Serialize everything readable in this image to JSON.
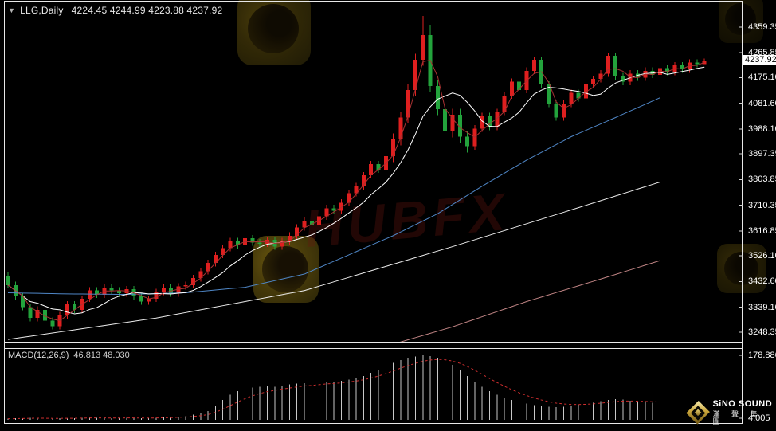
{
  "header": {
    "dropdown_icon": "▼",
    "symbol": "LLG,Daily",
    "values": "4224.45 4244.99 4223.88 4237.92"
  },
  "macd_header": {
    "label": "MACD(12,26,9)",
    "values": "46.813 48.030"
  },
  "price_axis": {
    "current": "4237.92"
  },
  "brand": {
    "name": "SiNO SOUND",
    "name_cn": "漢 聲 集 團"
  },
  "watermark": {
    "text": "HUBFX"
  },
  "chart_data": [
    {
      "type": "candlestick",
      "symbol": "LLG",
      "timeframe": "Daily",
      "last_ohlc": {
        "open": 4224.45,
        "high": 4244.99,
        "low": 4223.88,
        "close": 4237.92
      },
      "current_price": 4237.92,
      "ylim": [
        3213.6,
        4451.9
      ],
      "y_ticks": [
        "4359.35",
        "4265.85",
        "4175.10",
        "4081.60",
        "3988.10",
        "3897.35",
        "3803.85",
        "3710.35",
        "3616.85",
        "3526.10",
        "3432.60",
        "3339.10",
        "3248.35"
      ],
      "colors": {
        "bull": "#df1f1f",
        "bear": "#23a33c",
        "background": "#000000",
        "axis_text": "#ffffff",
        "border": "#e8e8e8"
      },
      "overlays": {
        "ma_fast": {
          "color": "#a83232",
          "period": 3,
          "type": "sma_of_close"
        },
        "ma_mid": {
          "color": "#ffffff",
          "period": 8,
          "type": "sma_of_close"
        },
        "ma_blue": {
          "color": "#4f86c6",
          "waypoints": [
            [
              0,
              3392
            ],
            [
              8,
              3388
            ],
            [
              16,
              3386
            ],
            [
              24,
              3392
            ],
            [
              32,
              3412
            ],
            [
              40,
              3460
            ],
            [
              46,
              3530
            ],
            [
              52,
              3600
            ],
            [
              58,
              3680
            ],
            [
              64,
              3780
            ],
            [
              70,
              3875
            ],
            [
              76,
              3960
            ],
            [
              82,
              4030
            ],
            [
              88,
              4102
            ]
          ]
        },
        "ma_long": {
          "color": "#ececec",
          "waypoints": [
            [
              0,
              3222
            ],
            [
              20,
              3300
            ],
            [
              40,
              3400
            ],
            [
              60,
              3560
            ],
            [
              75,
              3685
            ],
            [
              88,
              3795
            ]
          ]
        },
        "ma_slow": {
          "color": "#c08484",
          "waypoints": [
            [
              52,
              3205
            ],
            [
              60,
              3268
            ],
            [
              70,
              3360
            ],
            [
              80,
              3442
            ],
            [
              88,
              3509
            ]
          ]
        }
      },
      "ohlc": [
        [
          3455,
          3467,
          3408,
          3420
        ],
        [
          3420,
          3432,
          3368,
          3380
        ],
        [
          3380,
          3392,
          3328,
          3340
        ],
        [
          3340,
          3352,
          3288,
          3300
        ],
        [
          3300,
          3342,
          3288,
          3330
        ],
        [
          3330,
          3342,
          3278,
          3290
        ],
        [
          3290,
          3302,
          3258,
          3270
        ],
        [
          3270,
          3322,
          3258,
          3310
        ],
        [
          3310,
          3362,
          3298,
          3350
        ],
        [
          3350,
          3362,
          3318,
          3330
        ],
        [
          3330,
          3382,
          3318,
          3370
        ],
        [
          3370,
          3412,
          3358,
          3400
        ],
        [
          3400,
          3412,
          3373,
          3385
        ],
        [
          3385,
          3422,
          3373,
          3410
        ],
        [
          3410,
          3422,
          3388,
          3400
        ],
        [
          3400,
          3412,
          3378,
          3390
        ],
        [
          3390,
          3417,
          3378,
          3405
        ],
        [
          3405,
          3417,
          3368,
          3380
        ],
        [
          3380,
          3392,
          3348,
          3360
        ],
        [
          3360,
          3382,
          3348,
          3370
        ],
        [
          3370,
          3407,
          3358,
          3395
        ],
        [
          3395,
          3422,
          3383,
          3410
        ],
        [
          3410,
          3422,
          3378,
          3390
        ],
        [
          3390,
          3427,
          3378,
          3415
        ],
        [
          3415,
          3432,
          3403,
          3420
        ],
        [
          3420,
          3457,
          3408,
          3445
        ],
        [
          3445,
          3482,
          3433,
          3470
        ],
        [
          3470,
          3512,
          3458,
          3500
        ],
        [
          3500,
          3542,
          3488,
          3530
        ],
        [
          3530,
          3567,
          3518,
          3555
        ],
        [
          3555,
          3592,
          3543,
          3580
        ],
        [
          3580,
          3592,
          3553,
          3565
        ],
        [
          3565,
          3602,
          3553,
          3590
        ],
        [
          3590,
          3602,
          3563,
          3575
        ],
        [
          3575,
          3587,
          3558,
          3570
        ],
        [
          3570,
          3597,
          3558,
          3585
        ],
        [
          3585,
          3597,
          3548,
          3560
        ],
        [
          3560,
          3592,
          3548,
          3580
        ],
        [
          3580,
          3612,
          3568,
          3600
        ],
        [
          3600,
          3642,
          3588,
          3630
        ],
        [
          3630,
          3667,
          3618,
          3655
        ],
        [
          3655,
          3667,
          3628,
          3640
        ],
        [
          3640,
          3682,
          3628,
          3670
        ],
        [
          3670,
          3712,
          3658,
          3700
        ],
        [
          3700,
          3712,
          3678,
          3690
        ],
        [
          3690,
          3732,
          3678,
          3720
        ],
        [
          3720,
          3767,
          3708,
          3755
        ],
        [
          3755,
          3792,
          3743,
          3780
        ],
        [
          3780,
          3832,
          3768,
          3820
        ],
        [
          3820,
          3872,
          3808,
          3860
        ],
        [
          3860,
          3872,
          3828,
          3840
        ],
        [
          3840,
          3902,
          3828,
          3890
        ],
        [
          3890,
          3972,
          3868,
          3950
        ],
        [
          3950,
          4052,
          3928,
          4030
        ],
        [
          4030,
          4152,
          4008,
          4130
        ],
        [
          4130,
          4262,
          4108,
          4240
        ],
        [
          4240,
          4400,
          4218,
          4330
        ],
        [
          4330,
          4365,
          4123,
          4145
        ],
        [
          4145,
          4167,
          4038,
          4060
        ],
        [
          4060,
          4082,
          3958,
          3980
        ],
        [
          3980,
          4062,
          3958,
          4040
        ],
        [
          4040,
          4062,
          3938,
          3960
        ],
        [
          3960,
          3982,
          3903,
          3925
        ],
        [
          3925,
          4002,
          3913,
          3990
        ],
        [
          3990,
          4047,
          3978,
          4035
        ],
        [
          4035,
          4047,
          3983,
          3995
        ],
        [
          3995,
          4062,
          3983,
          4050
        ],
        [
          4050,
          4122,
          4038,
          4110
        ],
        [
          4110,
          4172,
          4098,
          4160
        ],
        [
          4160,
          4172,
          4118,
          4130
        ],
        [
          4130,
          4212,
          4118,
          4200
        ],
        [
          4200,
          4252,
          4188,
          4240
        ],
        [
          4240,
          4252,
          4138,
          4150
        ],
        [
          4150,
          4162,
          4068,
          4080
        ],
        [
          4080,
          4092,
          4018,
          4030
        ],
        [
          4030,
          4092,
          4018,
          4080
        ],
        [
          4080,
          4132,
          4068,
          4120
        ],
        [
          4120,
          4132,
          4088,
          4100
        ],
        [
          4100,
          4162,
          4088,
          4150
        ],
        [
          4150,
          4182,
          4138,
          4170
        ],
        [
          4170,
          4202,
          4158,
          4190
        ],
        [
          4190,
          4267,
          4178,
          4255
        ],
        [
          4255,
          4267,
          4168,
          4180
        ],
        [
          4180,
          4192,
          4148,
          4160
        ],
        [
          4160,
          4202,
          4148,
          4190
        ],
        [
          4190,
          4202,
          4163,
          4175
        ],
        [
          4175,
          4212,
          4163,
          4200
        ],
        [
          4200,
          4212,
          4173,
          4185
        ],
        [
          4185,
          4222,
          4173,
          4210
        ],
        [
          4210,
          4222,
          4183,
          4195
        ],
        [
          4195,
          4232,
          4183,
          4220
        ],
        [
          4220,
          4232,
          4193,
          4205
        ],
        [
          4205,
          4242,
          4193,
          4230
        ],
        [
          4230,
          4242,
          4212,
          4224.45
        ],
        [
          4224.45,
          4244.99,
          4223.88,
          4237.92
        ]
      ]
    },
    {
      "type": "macd",
      "params": [
        12,
        26,
        9
      ],
      "macd_value": 46.813,
      "signal_value": 48.03,
      "ylim": [
        -8.8,
        196.6
      ],
      "y_ticks": [
        "178.886",
        "4.005"
      ],
      "signal_smoothing": 0.25,
      "colors": {
        "bar": "#c8c8c8",
        "signal": "#cc2e2e"
      },
      "histogram": [
        3,
        4,
        5,
        6,
        5,
        4,
        3,
        4,
        5,
        4,
        6,
        7,
        6,
        5,
        4,
        5,
        6,
        5,
        4,
        5,
        6,
        7,
        8,
        9,
        10,
        14,
        18,
        24,
        40,
        55,
        70,
        80,
        86,
        90,
        92,
        94,
        92,
        95,
        98,
        100,
        102,
        100,
        104,
        106,
        104,
        108,
        112,
        116,
        122,
        130,
        138,
        148,
        158,
        166,
        172,
        176,
        178.886,
        177,
        172,
        164,
        152,
        138,
        122,
        106,
        92,
        80,
        70,
        62,
        55,
        49,
        45,
        41,
        38,
        36,
        35,
        37,
        39,
        42,
        45,
        48,
        52,
        55,
        57,
        56,
        53,
        51,
        49,
        48,
        46.813
      ]
    }
  ]
}
